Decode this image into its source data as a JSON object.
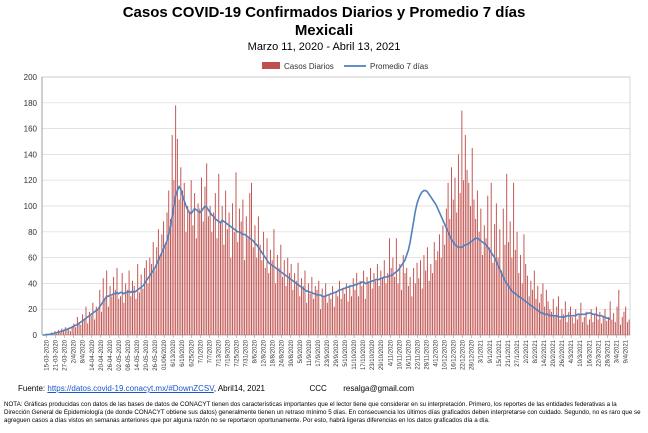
{
  "header": {
    "title_line1": "Casos COVID-19 Confirmados Diarios y Promedio 7 días",
    "title_line2": "Mexicali",
    "subtitle": "Marzo 11, 2020 - Abril 13, 2021"
  },
  "footer": {
    "source_label": "Fuente:",
    "source_link": "https://datos.covid-19.conacyt.mx/#DownZCSV",
    "source_date": ", Abril14, 2021",
    "credit": "CCC",
    "email": "resalga@gmail.com",
    "note": "NOTA: Gráficas producidas con datos de las bases de datos de CONACYT tienen dos características importantes que el lector tiene que considerar en su interpretación. Primero, los reportes de las entidades federativas a la Dirección General de Epidemiología (de donde CONACYT obtiene sus datos) generalmente tienen un retraso mínimo 5 días. En consecuencia los últimos días graficados deben interpretarse con cuidado. Segundo, no es raro que se agreguen casos a días vistos en semanas anteriores que por alguna razón no se reportaron oportunamente. Por esto, habrá ligeras diferencias en los datos graficados día a día."
  },
  "chart_data": {
    "type": "bar",
    "title": "Casos COVID-19 Confirmados Diarios y Promedio 7 días",
    "subtitle": "Marzo 11, 2020 - Abril 13, 2021",
    "ylim": [
      0,
      200
    ],
    "yticks": [
      0,
      20,
      40,
      60,
      80,
      100,
      120,
      140,
      160,
      180,
      200
    ],
    "grid": true,
    "legend": "top-center",
    "bar_color": "#c0504d",
    "line_color": "#4f81bd",
    "x_tick_labels": [
      "15-03-2020",
      "21-03-2020",
      "27-03-2020",
      "2/4/2020",
      "8/4/2020",
      "14-04-2020",
      "20-04-2020",
      "26-04-2020",
      "02-05-2020",
      "08-05-2020",
      "14-05-2020",
      "20-05-2020",
      "26-05-2020",
      "01/06/2020",
      "6/13/2020",
      "6/19/2020",
      "6/25/2020",
      "7/1/2020",
      "7/7/2020",
      "7/13/2020",
      "7/19/2020",
      "7/25/2020",
      "7/31/2020",
      "8/6/2020",
      "12/8/2020",
      "18/8/2020",
      "24/8/2020",
      "30/8/2020",
      "5/9/2020",
      "11/9/2020",
      "17/9/2020",
      "23/9/2020",
      "29/9/2020",
      "5/10/2020",
      "11/10/2020",
      "17/10/2020",
      "23/10/2020",
      "29/10/2020",
      "4/11/2020",
      "10/11/2020",
      "16/11/2020",
      "22/11/2020",
      "28/11/2020",
      "4/12/2020",
      "10/12/2020",
      "16/12/2020",
      "22/12/2020",
      "28/12/2020",
      "3/1/2021",
      "9/1/2021",
      "15/1/2021",
      "21/1/2021",
      "27/1/2021",
      "2/2/2021",
      "8/2/2021",
      "14/2/2021",
      "20/2/2021",
      "26/2/2021",
      "4/3/2021",
      "10/3/2021",
      "16/3/2021",
      "22/3/2021",
      "28/3/2021",
      "3/4/2021",
      "9/4/2021"
    ],
    "series": [
      {
        "name": "Casos Diarios",
        "type": "bar",
        "values": [
          0,
          0,
          1,
          0,
          1,
          2,
          0,
          3,
          1,
          4,
          2,
          5,
          3,
          6,
          4,
          5,
          3,
          7,
          9,
          6,
          14,
          10,
          8,
          16,
          12,
          22,
          9,
          18,
          15,
          25,
          12,
          22,
          20,
          35,
          18,
          44,
          28,
          50,
          22,
          38,
          30,
          45,
          35,
          52,
          28,
          30,
          48,
          25,
          40,
          35,
          50,
          30,
          42,
          38,
          28,
          55,
          33,
          47,
          36,
          52,
          58,
          40,
          60,
          55,
          72,
          50,
          68,
          82,
          62,
          78,
          88,
          70,
          95,
          112,
          90,
          155,
          120,
          178,
          152,
          105,
          130,
          112,
          118,
          80,
          100,
          95,
          120,
          85,
          110,
          75,
          102,
          98,
          122,
          88,
          115,
          133,
          92,
          100,
          80,
          95,
          110,
          75,
          125,
          88,
          100,
          70,
          112,
          82,
          95,
          60,
          102,
          80,
          126,
          72,
          98,
          88,
          105,
          58,
          92,
          75,
          110,
          118,
          68,
          85,
          60,
          92,
          70,
          58,
          80,
          52,
          75,
          48,
          66,
          58,
          82,
          40,
          62,
          52,
          70,
          45,
          58,
          38,
          60,
          48,
          55,
          35,
          48,
          42,
          56,
          30,
          44,
          38,
          50,
          25,
          40,
          32,
          45,
          28,
          38,
          35,
          42,
          20,
          36,
          30,
          40,
          25,
          32,
          28,
          38,
          22,
          34,
          30,
          42,
          28,
          36,
          32,
          40,
          26,
          38,
          30,
          44,
          35,
          48,
          30,
          42,
          38,
          50,
          28,
          45,
          40,
          52,
          36,
          48,
          42,
          55,
          38,
          50,
          45,
          58,
          40,
          48,
          75,
          52,
          60,
          45,
          75,
          40,
          55,
          35,
          62,
          48,
          52,
          38,
          45,
          30,
          52,
          40,
          56,
          44,
          58,
          36,
          62,
          50,
          68,
          42,
          55,
          48,
          72,
          58,
          65,
          78,
          60,
          85,
          70,
          98,
          118,
          90,
          130,
          105,
          122,
          95,
          140,
          110,
          174,
          120,
          155,
          128,
          118,
          100,
          145,
          105,
          90,
          112,
          80,
          98,
          62,
          85,
          75,
          108,
          68,
          118,
          56,
          86,
          102,
          60,
          82,
          50,
          98,
          70,
          125,
          72,
          88,
          60,
          118,
          66,
          80,
          48,
          62,
          40,
          78,
          55,
          46,
          30,
          42,
          35,
          50,
          28,
          38,
          25,
          32,
          40,
          22,
          35,
          26,
          20,
          18,
          28,
          15,
          22,
          30,
          12,
          20,
          16,
          26,
          10,
          18,
          22,
          14,
          9,
          20,
          12,
          16,
          25,
          10,
          14,
          18,
          8,
          12,
          20,
          10,
          16,
          22,
          12,
          18,
          9,
          15,
          20,
          11,
          14,
          26,
          12,
          17,
          10,
          22,
          35,
          8,
          14,
          18,
          22,
          10,
          12
        ]
      },
      {
        "name": "Promedio 7 días",
        "type": "line",
        "values": [
          0,
          0,
          0.3,
          0.4,
          0.6,
          0.8,
          1,
          1.5,
          1.8,
          2.2,
          2.6,
          3,
          3.5,
          4,
          4.5,
          5,
          5.5,
          6,
          7,
          7.5,
          8,
          9,
          10,
          11,
          12,
          13,
          14,
          15,
          16,
          17,
          18,
          19,
          20,
          22,
          24,
          26,
          28,
          30,
          30,
          31,
          31,
          32,
          32,
          33,
          32,
          33,
          33,
          32,
          33,
          33,
          34,
          33,
          34,
          33,
          34,
          35,
          36,
          37,
          38,
          40,
          42,
          44,
          46,
          48,
          50,
          52,
          55,
          58,
          61,
          64,
          67,
          70,
          73,
          78,
          84,
          92,
          100,
          108,
          112,
          115,
          113,
          108,
          104,
          100,
          97,
          95,
          94,
          96,
          98,
          97,
          96,
          95,
          96,
          98,
          100,
          99,
          97,
          95,
          93,
          92,
          90,
          89,
          88,
          87,
          89,
          88,
          87,
          86,
          85,
          84,
          83,
          82,
          81,
          80,
          80,
          79,
          78,
          78,
          77,
          76,
          75,
          74,
          73,
          71,
          70,
          68,
          66,
          64,
          62,
          60,
          58,
          56,
          55,
          54,
          53,
          52,
          51,
          50,
          49,
          48,
          47,
          46,
          45,
          44,
          43,
          42,
          41,
          40,
          39,
          38,
          37,
          36,
          35,
          34,
          34,
          33,
          33,
          32,
          32,
          31,
          31,
          31,
          30,
          30,
          30,
          31,
          31,
          32,
          32,
          33,
          33,
          34,
          35,
          35,
          36,
          36,
          37,
          37,
          38,
          38,
          38,
          39,
          39,
          40,
          40,
          41,
          41,
          40,
          40,
          41,
          41,
          42,
          42,
          43,
          43,
          43,
          44,
          44,
          45,
          45,
          45,
          46,
          46,
          47,
          48,
          49,
          50,
          52,
          54,
          56,
          58,
          62,
          66,
          72,
          80,
          88,
          96,
          102,
          106,
          109,
          111,
          112,
          112,
          111,
          109,
          107,
          105,
          103,
          101,
          98,
          95,
          92,
          89,
          86,
          83,
          80,
          77,
          74,
          72,
          70,
          69,
          68,
          68,
          68,
          69,
          70,
          70,
          71,
          72,
          73,
          74,
          75,
          75,
          74,
          73,
          72,
          71,
          70,
          68,
          66,
          64,
          62,
          60,
          57,
          54,
          51,
          48,
          45,
          42,
          40,
          38,
          36,
          34,
          33,
          32,
          31,
          30,
          29,
          28,
          27,
          26,
          25,
          24,
          23,
          22,
          21,
          20,
          19,
          18,
          17,
          17,
          16,
          16,
          16,
          15,
          15,
          15,
          15,
          15,
          14,
          14,
          14,
          14,
          14,
          15,
          15,
          15,
          15,
          15,
          15,
          16,
          16,
          16,
          16,
          16,
          16,
          17,
          17,
          17,
          16,
          16,
          16,
          15,
          15,
          15,
          14,
          14,
          13,
          13,
          12
        ]
      }
    ]
  }
}
